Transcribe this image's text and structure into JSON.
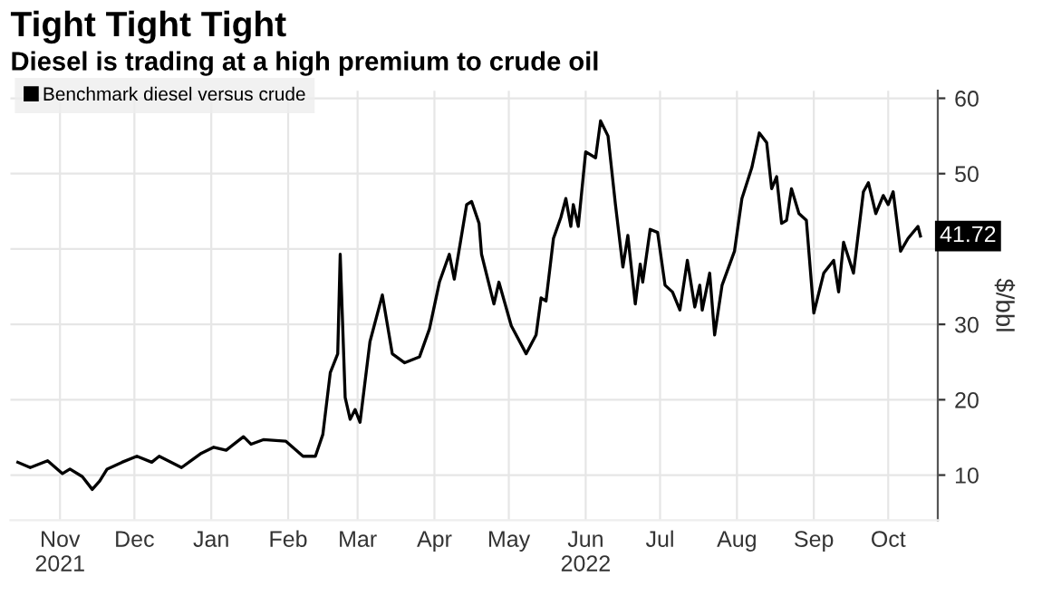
{
  "chart_data": {
    "type": "line",
    "title": "Tight Tight Tight",
    "subtitle": "Diesel is trading at a high premium to crude oil",
    "ylabel": "$/bbl",
    "x": [
      "2021-10-29",
      "2021-11-03",
      "2021-11-10",
      "2021-11-16",
      "2021-11-19",
      "2021-11-24",
      "2021-11-28",
      "2021-12-01",
      "2021-12-04",
      "2021-12-10",
      "2021-12-16",
      "2021-12-22",
      "2021-12-25",
      "2022-01-03",
      "2022-01-11",
      "2022-01-16",
      "2022-01-21",
      "2022-01-28",
      "2022-01-31",
      "2022-02-05",
      "2022-02-14",
      "2022-02-21",
      "2022-02-26",
      "2022-03-01",
      "2022-03-04",
      "2022-03-07",
      "2022-03-08",
      "2022-03-10",
      "2022-03-12",
      "2022-03-14",
      "2022-03-16",
      "2022-03-20",
      "2022-03-25",
      "2022-03-29",
      "2022-04-03",
      "2022-04-09",
      "2022-04-13",
      "2022-04-17",
      "2022-04-21",
      "2022-04-23",
      "2022-04-28",
      "2022-04-30",
      "2022-05-03",
      "2022-05-04",
      "2022-05-09",
      "2022-05-11",
      "2022-05-16",
      "2022-05-22",
      "2022-05-26",
      "2022-05-28",
      "2022-05-30",
      "2022-06-02",
      "2022-06-05",
      "2022-06-07",
      "2022-06-09",
      "2022-06-10",
      "2022-06-12",
      "2022-06-15",
      "2022-06-19",
      "2022-06-21",
      "2022-06-24",
      "2022-06-27",
      "2022-06-30",
      "2022-07-02",
      "2022-07-05",
      "2022-07-07",
      "2022-07-08",
      "2022-07-11",
      "2022-07-14",
      "2022-07-17",
      "2022-07-20",
      "2022-07-23",
      "2022-07-26",
      "2022-07-29",
      "2022-07-31",
      "2022-08-01",
      "2022-08-04",
      "2022-08-06",
      "2022-08-09",
      "2022-08-14",
      "2022-08-17",
      "2022-08-21",
      "2022-08-24",
      "2022-08-27",
      "2022-08-29",
      "2022-08-31",
      "2022-09-02",
      "2022-09-04",
      "2022-09-06",
      "2022-09-09",
      "2022-09-12",
      "2022-09-15",
      "2022-09-19",
      "2022-09-23",
      "2022-09-25",
      "2022-09-27",
      "2022-10-01",
      "2022-10-05",
      "2022-10-07",
      "2022-10-10",
      "2022-10-13",
      "2022-10-15",
      "2022-10-17",
      "2022-10-20",
      "2022-10-23",
      "2022-10-27",
      "2022-10-28"
    ],
    "series": [
      {
        "name": "Benchmark diesel versus crude",
        "color": "#000000",
        "values": [
          11.7,
          11.0,
          11.9,
          10.2,
          10.8,
          9.8,
          8.1,
          9.2,
          10.8,
          11.7,
          12.5,
          11.7,
          12.5,
          11.0,
          12.9,
          13.7,
          13.3,
          15.1,
          14.1,
          14.7,
          14.5,
          12.5,
          12.5,
          15.4,
          23.6,
          26.1,
          39.3,
          20.3,
          17.4,
          18.7,
          17.0,
          27.7,
          33.9,
          26.1,
          24.9,
          25.7,
          29.4,
          35.6,
          39.3,
          36.0,
          45.9,
          46.3,
          43.4,
          39.3,
          32.7,
          35.6,
          29.8,
          26.1,
          28.6,
          33.5,
          33.1,
          41.4,
          44.2,
          46.7,
          43.0,
          45.9,
          43.0,
          52.9,
          52.1,
          57.0,
          55.0,
          45.9,
          37.6,
          41.8,
          32.7,
          38.0,
          35.6,
          42.6,
          42.2,
          35.2,
          34.3,
          31.9,
          38.5,
          32.3,
          35.2,
          31.9,
          36.8,
          28.6,
          35.2,
          39.7,
          46.7,
          50.8,
          55.4,
          54.1,
          48.0,
          49.6,
          43.4,
          43.8,
          48.0,
          44.7,
          43.8,
          31.5,
          36.8,
          38.5,
          34.3,
          40.9,
          36.8,
          47.6,
          48.8,
          44.7,
          47.1,
          45.9,
          47.6,
          39.7,
          41.4,
          43.0,
          41.72
        ]
      }
    ],
    "annotations": [
      {
        "text": "41.72",
        "x": "2022-10-28",
        "y": 41.72
      }
    ],
    "xlim": [
      "2021-10-26",
      "2022-11-04"
    ],
    "xticks": [
      {
        "value": "2021-11-15",
        "label": "Nov\n2021"
      },
      {
        "value": "2021-12-15",
        "label": "Dec"
      },
      {
        "value": "2022-01-15",
        "label": "Jan"
      },
      {
        "value": "2022-02-15",
        "label": "Feb"
      },
      {
        "value": "2022-03-15",
        "label": "Mar"
      },
      {
        "value": "2022-04-15",
        "label": "Apr"
      },
      {
        "value": "2022-05-15",
        "label": "May"
      },
      {
        "value": "2022-06-15",
        "label": "Jun\n2022"
      },
      {
        "value": "2022-07-15",
        "label": "Jul"
      },
      {
        "value": "2022-08-15",
        "label": "Aug"
      },
      {
        "value": "2022-09-15",
        "label": "Sep"
      },
      {
        "value": "2022-10-15",
        "label": "Oct"
      }
    ],
    "ylim": [
      4,
      61
    ],
    "yticks": [
      10,
      20,
      30,
      {
        "value": 40,
        "label": null
      },
      50,
      60
    ],
    "grid": true,
    "legend": "top left",
    "marker": "none",
    "line_style": "solid"
  }
}
